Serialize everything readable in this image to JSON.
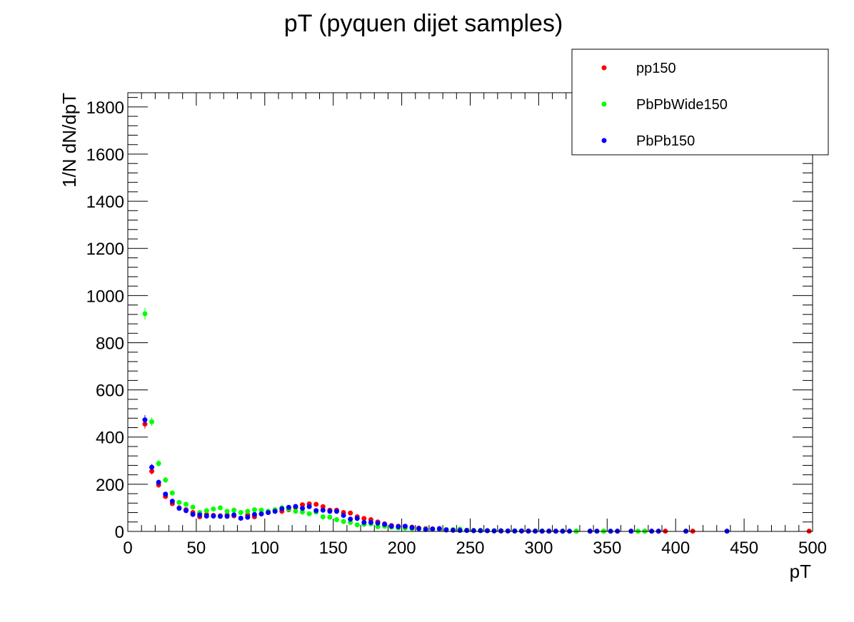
{
  "chart_data": {
    "type": "scatter",
    "title": "pT (pyquen dijet samples)",
    "xlabel": "pT",
    "ylabel": "1/N dN/dpT",
    "xlim": [
      0,
      500
    ],
    "ylim": [
      0,
      1860
    ],
    "xticks": [
      0,
      50,
      100,
      150,
      200,
      250,
      300,
      350,
      400,
      450,
      500
    ],
    "yticks": [
      0,
      200,
      400,
      600,
      800,
      1000,
      1200,
      1400,
      1600,
      1800
    ],
    "grid": false,
    "legend_position": "top-right",
    "series": [
      {
        "name": "pp150",
        "color": "#ff0000",
        "points": [
          [
            12.5,
            455,
            20
          ],
          [
            17.5,
            255,
            14
          ],
          [
            22.5,
            197,
            12
          ],
          [
            27.5,
            148,
            10
          ],
          [
            32.5,
            118,
            9
          ],
          [
            37.5,
            100,
            8
          ],
          [
            42.5,
            92,
            7
          ],
          [
            47.5,
            80,
            7
          ],
          [
            52.5,
            62,
            6
          ],
          [
            57.5,
            72,
            6
          ],
          [
            62.5,
            68,
            6
          ],
          [
            67.5,
            66,
            6
          ],
          [
            72.5,
            70,
            6
          ],
          [
            77.5,
            66,
            6
          ],
          [
            82.5,
            56,
            6
          ],
          [
            87.5,
            70,
            6
          ],
          [
            92.5,
            62,
            6
          ],
          [
            97.5,
            75,
            6
          ],
          [
            102.5,
            80,
            6
          ],
          [
            107.5,
            88,
            6
          ],
          [
            112.5,
            85,
            6
          ],
          [
            117.5,
            92,
            7
          ],
          [
            122.5,
            102,
            7
          ],
          [
            127.5,
            113,
            7
          ],
          [
            132.5,
            117,
            7
          ],
          [
            137.5,
            115,
            7
          ],
          [
            142.5,
            105,
            7
          ],
          [
            147.5,
            90,
            7
          ],
          [
            152.5,
            90,
            6
          ],
          [
            157.5,
            80,
            6
          ],
          [
            162.5,
            78,
            6
          ],
          [
            167.5,
            62,
            5
          ],
          [
            172.5,
            55,
            5
          ],
          [
            177.5,
            50,
            5
          ],
          [
            182.5,
            40,
            4
          ],
          [
            187.5,
            32,
            4
          ],
          [
            192.5,
            25,
            3
          ],
          [
            197.5,
            22,
            3
          ],
          [
            202.5,
            20,
            3
          ],
          [
            207.5,
            18,
            3
          ],
          [
            212.5,
            14,
            3
          ],
          [
            217.5,
            12,
            2
          ],
          [
            222.5,
            11,
            2
          ],
          [
            227.5,
            9,
            2
          ],
          [
            232.5,
            8,
            2
          ],
          [
            237.5,
            7,
            2
          ],
          [
            242.5,
            6,
            2
          ],
          [
            247.5,
            5,
            2
          ],
          [
            252.5,
            4,
            1
          ],
          [
            257.5,
            4,
            1
          ],
          [
            262.5,
            3,
            1
          ],
          [
            267.5,
            3,
            1
          ],
          [
            272.5,
            3,
            1
          ],
          [
            277.5,
            2,
            1
          ],
          [
            282.5,
            2,
            1
          ],
          [
            287.5,
            2,
            1
          ],
          [
            292.5,
            2,
            1
          ],
          [
            297.5,
            2,
            1
          ],
          [
            302.5,
            2,
            1
          ],
          [
            307.5,
            2,
            1
          ],
          [
            312.5,
            1,
            1
          ],
          [
            317.5,
            1,
            1
          ],
          [
            327.5,
            1,
            1
          ],
          [
            337.5,
            1,
            1
          ],
          [
            347.5,
            1,
            1
          ],
          [
            357.5,
            1,
            1
          ],
          [
            367.5,
            1,
            1
          ],
          [
            377.5,
            1,
            1
          ],
          [
            382.5,
            1,
            1
          ],
          [
            387.5,
            1,
            1
          ],
          [
            392.5,
            1,
            1
          ],
          [
            407.5,
            1,
            1
          ],
          [
            412.5,
            1,
            1
          ],
          [
            497.5,
            1,
            1
          ]
        ]
      },
      {
        "name": "PbPbWide150",
        "color": "#00ff00",
        "points": [
          [
            12.5,
            923,
            25
          ],
          [
            17.5,
            465,
            18
          ],
          [
            22.5,
            288,
            14
          ],
          [
            27.5,
            218,
            12
          ],
          [
            32.5,
            163,
            10
          ],
          [
            37.5,
            123,
            9
          ],
          [
            42.5,
            115,
            8
          ],
          [
            47.5,
            103,
            8
          ],
          [
            52.5,
            80,
            7
          ],
          [
            57.5,
            88,
            7
          ],
          [
            62.5,
            95,
            7
          ],
          [
            67.5,
            100,
            7
          ],
          [
            72.5,
            85,
            7
          ],
          [
            77.5,
            90,
            7
          ],
          [
            82.5,
            80,
            7
          ],
          [
            87.5,
            85,
            7
          ],
          [
            92.5,
            92,
            7
          ],
          [
            97.5,
            90,
            7
          ],
          [
            102.5,
            85,
            7
          ],
          [
            107.5,
            92,
            7
          ],
          [
            112.5,
            100,
            7
          ],
          [
            117.5,
            95,
            7
          ],
          [
            122.5,
            85,
            7
          ],
          [
            127.5,
            82,
            7
          ],
          [
            132.5,
            75,
            7
          ],
          [
            137.5,
            82,
            7
          ],
          [
            142.5,
            62,
            6
          ],
          [
            147.5,
            60,
            6
          ],
          [
            152.5,
            50,
            5
          ],
          [
            157.5,
            42,
            5
          ],
          [
            162.5,
            38,
            5
          ],
          [
            167.5,
            28,
            4
          ],
          [
            172.5,
            30,
            4
          ],
          [
            177.5,
            32,
            4
          ],
          [
            182.5,
            20,
            3
          ],
          [
            187.5,
            22,
            3
          ],
          [
            192.5,
            18,
            3
          ],
          [
            197.5,
            15,
            3
          ],
          [
            202.5,
            14,
            3
          ],
          [
            207.5,
            12,
            2
          ],
          [
            212.5,
            11,
            2
          ],
          [
            217.5,
            10,
            2
          ],
          [
            222.5,
            10,
            2
          ],
          [
            227.5,
            9,
            2
          ],
          [
            232.5,
            8,
            2
          ],
          [
            237.5,
            7,
            2
          ],
          [
            242.5,
            10,
            2
          ],
          [
            247.5,
            5,
            2
          ],
          [
            252.5,
            4,
            1
          ],
          [
            257.5,
            4,
            1
          ],
          [
            262.5,
            3,
            1
          ],
          [
            267.5,
            3,
            1
          ],
          [
            272.5,
            2,
            1
          ],
          [
            277.5,
            2,
            1
          ],
          [
            282.5,
            2,
            1
          ],
          [
            287.5,
            2,
            1
          ],
          [
            297.5,
            2,
            1
          ],
          [
            302.5,
            2,
            1
          ],
          [
            307.5,
            1,
            1
          ],
          [
            317.5,
            1,
            1
          ],
          [
            327.5,
            1,
            1
          ],
          [
            347.5,
            1,
            1
          ],
          [
            372.5,
            1,
            1
          ],
          [
            377.5,
            1,
            1
          ]
        ]
      },
      {
        "name": "PbPb150",
        "color": "#0000ff",
        "points": [
          [
            12.5,
            473,
            20
          ],
          [
            17.5,
            272,
            14
          ],
          [
            22.5,
            208,
            12
          ],
          [
            27.5,
            158,
            10
          ],
          [
            32.5,
            128,
            9
          ],
          [
            37.5,
            98,
            8
          ],
          [
            42.5,
            88,
            7
          ],
          [
            47.5,
            72,
            7
          ],
          [
            52.5,
            70,
            6
          ],
          [
            57.5,
            65,
            6
          ],
          [
            62.5,
            65,
            6
          ],
          [
            67.5,
            64,
            6
          ],
          [
            72.5,
            64,
            6
          ],
          [
            77.5,
            70,
            6
          ],
          [
            82.5,
            56,
            6
          ],
          [
            87.5,
            60,
            6
          ],
          [
            92.5,
            72,
            6
          ],
          [
            97.5,
            74,
            6
          ],
          [
            102.5,
            80,
            6
          ],
          [
            107.5,
            85,
            6
          ],
          [
            112.5,
            96,
            7
          ],
          [
            117.5,
            102,
            7
          ],
          [
            122.5,
            106,
            7
          ],
          [
            127.5,
            98,
            7
          ],
          [
            132.5,
            105,
            7
          ],
          [
            137.5,
            88,
            7
          ],
          [
            142.5,
            90,
            7
          ],
          [
            147.5,
            85,
            6
          ],
          [
            152.5,
            85,
            6
          ],
          [
            157.5,
            68,
            6
          ],
          [
            162.5,
            52,
            5
          ],
          [
            167.5,
            55,
            5
          ],
          [
            172.5,
            38,
            4
          ],
          [
            177.5,
            38,
            4
          ],
          [
            182.5,
            35,
            4
          ],
          [
            187.5,
            30,
            4
          ],
          [
            192.5,
            22,
            3
          ],
          [
            197.5,
            20,
            3
          ],
          [
            202.5,
            22,
            3
          ],
          [
            207.5,
            16,
            3
          ],
          [
            212.5,
            12,
            2
          ],
          [
            217.5,
            8,
            2
          ],
          [
            222.5,
            10,
            2
          ],
          [
            227.5,
            12,
            2
          ],
          [
            232.5,
            6,
            2
          ],
          [
            237.5,
            5,
            2
          ],
          [
            242.5,
            4,
            1
          ],
          [
            247.5,
            4,
            1
          ],
          [
            252.5,
            3,
            1
          ],
          [
            257.5,
            3,
            1
          ],
          [
            262.5,
            3,
            1
          ],
          [
            267.5,
            2,
            1
          ],
          [
            272.5,
            2,
            1
          ],
          [
            277.5,
            2,
            1
          ],
          [
            282.5,
            2,
            1
          ],
          [
            287.5,
            2,
            1
          ],
          [
            292.5,
            1,
            1
          ],
          [
            297.5,
            1,
            1
          ],
          [
            302.5,
            1,
            1
          ],
          [
            307.5,
            1,
            1
          ],
          [
            312.5,
            1,
            1
          ],
          [
            317.5,
            1,
            1
          ],
          [
            322.5,
            1,
            1
          ],
          [
            337.5,
            1,
            1
          ],
          [
            342.5,
            1,
            1
          ],
          [
            352.5,
            1,
            1
          ],
          [
            357.5,
            1,
            1
          ],
          [
            367.5,
            1,
            1
          ],
          [
            382.5,
            1,
            1
          ],
          [
            387.5,
            1,
            1
          ],
          [
            407.5,
            1,
            1
          ],
          [
            437.5,
            1,
            1
          ]
        ]
      }
    ]
  }
}
